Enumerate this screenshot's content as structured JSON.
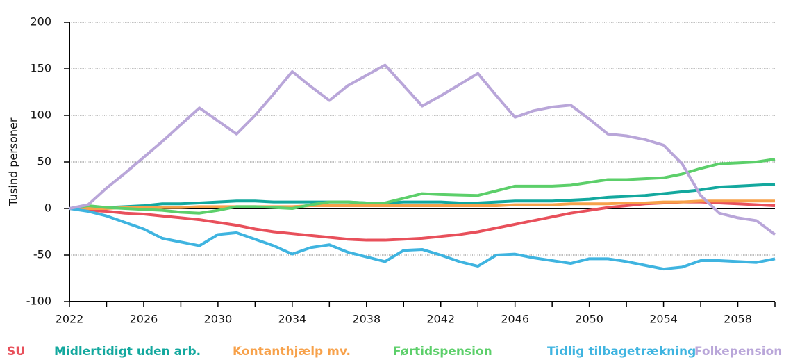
{
  "chart_data": {
    "type": "line",
    "y_label": "Tusind personer",
    "x": [
      2022,
      2023,
      2024,
      2025,
      2026,
      2027,
      2028,
      2029,
      2030,
      2031,
      2032,
      2033,
      2034,
      2035,
      2036,
      2037,
      2038,
      2039,
      2040,
      2041,
      2042,
      2043,
      2044,
      2045,
      2046,
      2047,
      2048,
      2049,
      2050,
      2051,
      2052,
      2053,
      2054,
      2055,
      2056,
      2057,
      2058,
      2059,
      2060
    ],
    "xlim": [
      2022,
      2060
    ],
    "xticks": [
      2022,
      2026,
      2030,
      2034,
      2038,
      2042,
      2046,
      2050,
      2054,
      2058
    ],
    "xminorticks": [
      2024,
      2028,
      2032,
      2036,
      2040,
      2044,
      2048,
      2052,
      2056,
      2060
    ],
    "ylim": [
      -100,
      200
    ],
    "yticks": [
      -100,
      -50,
      0,
      50,
      100,
      150,
      200
    ],
    "grid": true,
    "legend": "bottom",
    "series": [
      {
        "name": "SU",
        "color": "#e8505b",
        "values": [
          0,
          -2,
          -3,
          -5,
          -6,
          -8,
          -10,
          -12,
          -15,
          -18,
          -22,
          -25,
          -27,
          -29,
          -31,
          -33,
          -34,
          -34,
          -33,
          -32,
          -30,
          -28,
          -25,
          -21,
          -17,
          -13,
          -9,
          -5,
          -2,
          1,
          3,
          5,
          6,
          7,
          7,
          6,
          5,
          4,
          3
        ]
      },
      {
        "name": "Midlertidigt uden arb.",
        "color": "#13a89e",
        "values": [
          0,
          0,
          1,
          2,
          3,
          5,
          5,
          6,
          7,
          8,
          8,
          7,
          7,
          7,
          7,
          7,
          6,
          6,
          7,
          7,
          7,
          6,
          6,
          7,
          8,
          8,
          8,
          9,
          10,
          12,
          13,
          14,
          16,
          18,
          20,
          23,
          24,
          25,
          26
        ]
      },
      {
        "name": "Kontanthjælp mv.",
        "color": "#f7a14a",
        "values": [
          0,
          0,
          0,
          1,
          1,
          1,
          1,
          2,
          2,
          2,
          2,
          2,
          2,
          3,
          3,
          3,
          3,
          3,
          3,
          3,
          3,
          3,
          3,
          3,
          4,
          4,
          4,
          5,
          5,
          5,
          6,
          6,
          7,
          7,
          8,
          8,
          8,
          8,
          8
        ]
      },
      {
        "name": "Førtidspension",
        "color": "#5ccf6a",
        "values": [
          0,
          3,
          1,
          0,
          -1,
          -2,
          -4,
          -5,
          -2,
          2,
          2,
          1,
          0,
          4,
          7,
          7,
          6,
          6,
          11,
          16,
          15,
          14.5,
          14,
          19,
          24,
          24,
          24,
          25,
          28,
          31,
          31,
          32,
          33,
          37,
          43,
          48,
          49,
          50,
          53
        ]
      },
      {
        "name": "Tidlig tilbagetrækning",
        "color": "#3fb4e0",
        "values": [
          0,
          -3,
          -8,
          -15,
          -22,
          -32,
          -36,
          -40,
          -28,
          -26,
          -33,
          -40,
          -49,
          -42,
          -39,
          -47,
          -52,
          -57,
          -45,
          -44,
          -50,
          -57,
          -62,
          -50,
          -49,
          -53,
          -56,
          -59,
          -54,
          -54,
          -57,
          -61,
          -65,
          -63,
          -56,
          -56,
          -57,
          -58,
          -54
        ]
      },
      {
        "name": "Folkepension",
        "color": "#b9a6d9",
        "values": [
          0,
          4,
          22,
          38,
          55,
          72,
          90,
          108,
          94,
          80,
          100,
          123,
          147,
          131,
          116,
          132,
          143,
          154,
          132,
          110,
          121,
          133,
          145,
          121,
          98,
          105,
          109,
          111,
          96,
          80,
          78,
          74,
          68,
          48,
          14,
          -5,
          -10,
          -13,
          -28
        ]
      }
    ]
  }
}
